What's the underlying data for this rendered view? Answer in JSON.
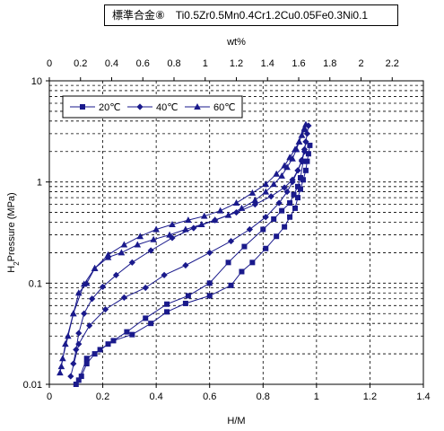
{
  "chart_data": {
    "type": "line",
    "title": "標準合金⑧　Ti0.5Zr0.5Mn0.4Cr1.2Cu0.05Fe0.3Ni0.1",
    "xlabel": "H/M",
    "x2label": "wt%",
    "ylabel": "Pressure (MPa)",
    "ylabel_species": "H",
    "ylabel_subscript": "2",
    "xlim": [
      0,
      1.4
    ],
    "x2lim": [
      0,
      2.4
    ],
    "ylim": [
      0.01,
      10
    ],
    "yscale": "log",
    "grid": true,
    "legend_position": "top-left",
    "x_ticks": [
      "0",
      "0.2",
      "0.4",
      "0.6",
      "0.8",
      "1",
      "1.2",
      "1.4"
    ],
    "x2_ticks": [
      "0",
      "0.2",
      "0.4",
      "0.6",
      "0.8",
      "1",
      "1.2",
      "1.4",
      "1.6",
      "1.8",
      "2",
      "2.2"
    ],
    "y_ticks": [
      "0.01",
      "0.1",
      "1",
      "10"
    ],
    "series": [
      {
        "name": "20℃",
        "marker": "square",
        "color": "#1a1a8c",
        "absorption": [
          [
            0.11,
            0.011
          ],
          [
            0.14,
            0.018
          ],
          [
            0.19,
            0.022
          ],
          [
            0.24,
            0.027
          ],
          [
            0.31,
            0.031
          ],
          [
            0.38,
            0.04
          ],
          [
            0.44,
            0.052
          ],
          [
            0.51,
            0.063
          ],
          [
            0.6,
            0.075
          ],
          [
            0.68,
            0.095
          ],
          [
            0.72,
            0.13
          ],
          [
            0.76,
            0.16
          ],
          [
            0.81,
            0.22
          ],
          [
            0.85,
            0.29
          ],
          [
            0.88,
            0.36
          ],
          [
            0.9,
            0.45
          ],
          [
            0.92,
            0.55
          ],
          [
            0.93,
            0.7
          ],
          [
            0.94,
            0.85
          ],
          [
            0.95,
            1.05
          ],
          [
            0.96,
            1.3
          ],
          [
            0.965,
            1.6
          ],
          [
            0.97,
            1.9
          ],
          [
            0.975,
            2.3
          ]
        ],
        "desorption": [
          [
            0.95,
            1.6
          ],
          [
            0.94,
            1.1
          ],
          [
            0.93,
            0.9
          ],
          [
            0.915,
            0.75
          ],
          [
            0.9,
            0.62
          ],
          [
            0.87,
            0.52
          ],
          [
            0.84,
            0.43
          ],
          [
            0.8,
            0.34
          ],
          [
            0.73,
            0.23
          ],
          [
            0.67,
            0.16
          ],
          [
            0.6,
            0.1
          ],
          [
            0.52,
            0.075
          ],
          [
            0.44,
            0.062
          ],
          [
            0.36,
            0.045
          ],
          [
            0.29,
            0.033
          ],
          [
            0.22,
            0.025
          ],
          [
            0.17,
            0.02
          ],
          [
            0.14,
            0.016
          ],
          [
            0.12,
            0.012
          ],
          [
            0.1,
            0.01
          ]
        ]
      },
      {
        "name": "40℃",
        "marker": "diamond",
        "color": "#1a1a8c",
        "absorption": [
          [
            0.08,
            0.012
          ],
          [
            0.11,
            0.025
          ],
          [
            0.15,
            0.038
          ],
          [
            0.21,
            0.055
          ],
          [
            0.28,
            0.072
          ],
          [
            0.36,
            0.09
          ],
          [
            0.43,
            0.12
          ],
          [
            0.51,
            0.15
          ],
          [
            0.6,
            0.2
          ],
          [
            0.68,
            0.26
          ],
          [
            0.75,
            0.34
          ],
          [
            0.81,
            0.45
          ],
          [
            0.86,
            0.62
          ],
          [
            0.89,
            0.8
          ],
          [
            0.91,
            1.0
          ],
          [
            0.93,
            1.3
          ],
          [
            0.945,
            1.65
          ],
          [
            0.955,
            2.1
          ],
          [
            0.96,
            2.5
          ],
          [
            0.965,
            3.0
          ],
          [
            0.97,
            3.6
          ]
        ],
        "desorption": [
          [
            0.96,
            2.5
          ],
          [
            0.955,
            2.0
          ],
          [
            0.945,
            1.6
          ],
          [
            0.93,
            1.3
          ],
          [
            0.91,
            1.05
          ],
          [
            0.88,
            0.88
          ],
          [
            0.83,
            0.72
          ],
          [
            0.77,
            0.6
          ],
          [
            0.7,
            0.5
          ],
          [
            0.62,
            0.42
          ],
          [
            0.54,
            0.35
          ],
          [
            0.46,
            0.28
          ],
          [
            0.38,
            0.21
          ],
          [
            0.31,
            0.16
          ],
          [
            0.25,
            0.12
          ],
          [
            0.2,
            0.092
          ],
          [
            0.16,
            0.07
          ],
          [
            0.13,
            0.05
          ],
          [
            0.11,
            0.032
          ],
          [
            0.1,
            0.022
          ],
          [
            0.09,
            0.016
          ]
        ]
      },
      {
        "name": "60℃",
        "marker": "triangle",
        "color": "#1a1a8c",
        "absorption": [
          [
            0.045,
            0.015
          ],
          [
            0.06,
            0.025
          ],
          [
            0.09,
            0.05
          ],
          [
            0.13,
            0.098
          ],
          [
            0.17,
            0.14
          ],
          [
            0.22,
            0.18
          ],
          [
            0.27,
            0.2
          ],
          [
            0.33,
            0.24
          ],
          [
            0.39,
            0.27
          ],
          [
            0.45,
            0.3
          ],
          [
            0.51,
            0.34
          ],
          [
            0.57,
            0.38
          ],
          [
            0.62,
            0.42
          ],
          [
            0.67,
            0.47
          ],
          [
            0.72,
            0.55
          ],
          [
            0.77,
            0.66
          ],
          [
            0.81,
            0.8
          ],
          [
            0.84,
            0.95
          ],
          [
            0.87,
            1.15
          ],
          [
            0.89,
            1.4
          ],
          [
            0.91,
            1.7
          ],
          [
            0.925,
            2.1
          ],
          [
            0.935,
            2.5
          ],
          [
            0.945,
            2.9
          ],
          [
            0.955,
            3.3
          ],
          [
            0.96,
            3.7
          ]
        ],
        "desorption": [
          [
            0.955,
            3.4
          ],
          [
            0.945,
            2.9
          ],
          [
            0.935,
            2.5
          ],
          [
            0.92,
            2.1
          ],
          [
            0.9,
            1.75
          ],
          [
            0.88,
            1.45
          ],
          [
            0.85,
            1.2
          ],
          [
            0.81,
            0.95
          ],
          [
            0.76,
            0.78
          ],
          [
            0.7,
            0.62
          ],
          [
            0.64,
            0.52
          ],
          [
            0.58,
            0.46
          ],
          [
            0.52,
            0.42
          ],
          [
            0.46,
            0.38
          ],
          [
            0.4,
            0.34
          ],
          [
            0.34,
            0.29
          ],
          [
            0.28,
            0.24
          ],
          [
            0.22,
            0.19
          ],
          [
            0.17,
            0.14
          ],
          [
            0.14,
            0.1
          ],
          [
            0.11,
            0.08
          ],
          [
            0.09,
            0.05
          ],
          [
            0.07,
            0.03
          ],
          [
            0.05,
            0.018
          ],
          [
            0.04,
            0.013
          ]
        ]
      }
    ]
  }
}
